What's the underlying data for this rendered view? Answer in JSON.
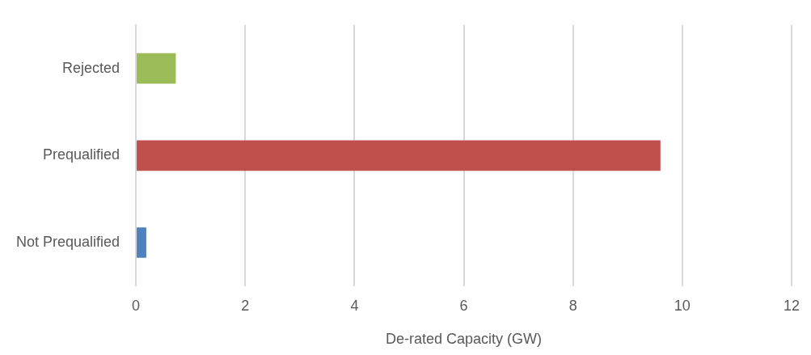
{
  "chart_data": {
    "type": "bar",
    "orientation": "horizontal",
    "xlabel": "De-rated Capacity (GW)",
    "categories": [
      "Rejected",
      "Prequalified",
      "Not Prequalified"
    ],
    "values": [
      0.73,
      9.6,
      0.19
    ],
    "colors": [
      "#9bbb59",
      "#c0504d",
      "#4f81bd"
    ],
    "xlim": [
      0,
      12
    ],
    "xticks": [
      0,
      2,
      4,
      6,
      8,
      10,
      12
    ],
    "grid": "x",
    "legend": false
  }
}
